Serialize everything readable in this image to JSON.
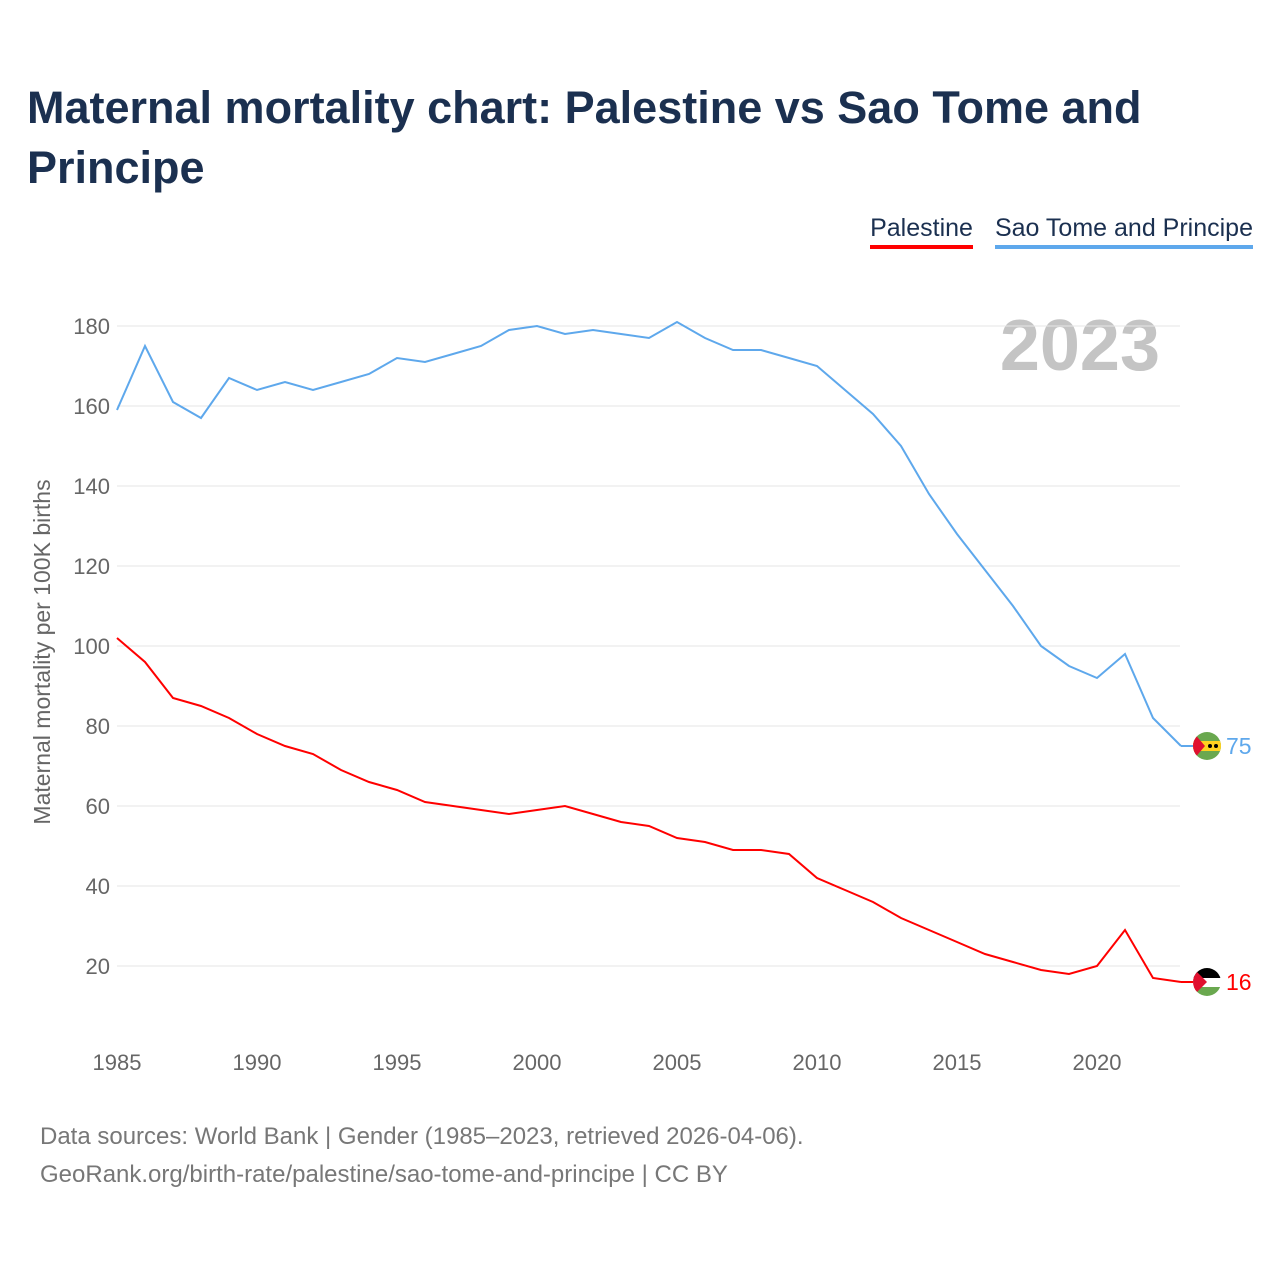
{
  "title": "Maternal mortality chart: Palestine vs Sao Tome and Principe",
  "year_label": "2023",
  "source_line1": "Data sources: World Bank | Gender (1985–2023, retrieved 2026-04-06).",
  "source_line2": "GeoRank.org/birth-rate/palestine/sao-tome-and-principe | CC BY",
  "chart_data": {
    "type": "line",
    "title": "Maternal mortality chart: Palestine vs Sao Tome and Principe",
    "xlabel": "",
    "ylabel": "Maternal mortality per 100K births",
    "xlim": [
      1985,
      2023
    ],
    "ylim": [
      0,
      190
    ],
    "x_ticks": [
      1985,
      1990,
      1995,
      2000,
      2005,
      2010,
      2015,
      2020
    ],
    "y_ticks": [
      20,
      40,
      60,
      80,
      100,
      120,
      140,
      160,
      180
    ],
    "grid": true,
    "legend": "top-right",
    "x": [
      1985,
      1986,
      1987,
      1988,
      1989,
      1990,
      1991,
      1992,
      1993,
      1994,
      1995,
      1996,
      1997,
      1998,
      1999,
      2000,
      2001,
      2002,
      2003,
      2004,
      2005,
      2006,
      2007,
      2008,
      2009,
      2010,
      2011,
      2012,
      2013,
      2014,
      2015,
      2016,
      2017,
      2018,
      2019,
      2020,
      2021,
      2022,
      2023
    ],
    "series": [
      {
        "name": "Palestine",
        "color": "#ff0000",
        "end_label": "16",
        "values": [
          102,
          96,
          87,
          85,
          82,
          78,
          75,
          73,
          69,
          66,
          64,
          61,
          60,
          59,
          58,
          59,
          60,
          58,
          56,
          55,
          52,
          51,
          49,
          49,
          48,
          42,
          39,
          36,
          32,
          29,
          26,
          23,
          21,
          19,
          18,
          20,
          29,
          17,
          16
        ]
      },
      {
        "name": "Sao Tome and Principe",
        "color": "#5ea8ec",
        "end_label": "75",
        "values": [
          159,
          175,
          161,
          157,
          167,
          164,
          166,
          164,
          166,
          168,
          172,
          171,
          173,
          175,
          179,
          180,
          178,
          179,
          178,
          177,
          181,
          177,
          174,
          174,
          172,
          170,
          164,
          158,
          150,
          138,
          128,
          119,
          110,
          100,
          95,
          92,
          98,
          82,
          75
        ]
      }
    ]
  }
}
